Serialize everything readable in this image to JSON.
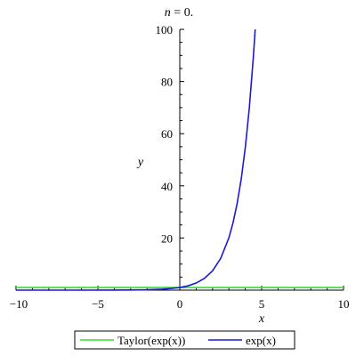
{
  "chart_data": {
    "type": "line",
    "title": "n = 0.",
    "xlabel": "x",
    "ylabel": "y",
    "xlim": [
      -10,
      10
    ],
    "ylim": [
      0,
      100
    ],
    "x_ticks": [
      -10,
      -5,
      0,
      5,
      10
    ],
    "x_tick_labels": [
      "−10",
      "−5",
      "0",
      "5",
      "10"
    ],
    "y_ticks": [
      20,
      40,
      60,
      80,
      100
    ],
    "y_tick_labels": [
      "20",
      "40",
      "60",
      "80",
      "100"
    ],
    "grid": false,
    "legend_position": "bottom",
    "series": [
      {
        "name": "Taylor(exp(x))",
        "color": "#33dd33",
        "x": [
          -10,
          10
        ],
        "y": [
          1,
          1
        ]
      },
      {
        "name": "exp(x)",
        "color": "#1a1ad6",
        "x": [
          -10,
          -8,
          -6,
          -4,
          -3,
          -2,
          -1,
          0,
          0.5,
          1,
          1.5,
          2,
          2.5,
          3,
          3.25,
          3.5,
          3.75,
          4,
          4.25,
          4.5,
          4.605
        ],
        "y": [
          4.54e-05,
          0.000335,
          0.00248,
          0.0183,
          0.0498,
          0.135,
          0.368,
          1,
          1.649,
          2.718,
          4.482,
          7.389,
          12.18,
          20.09,
          25.79,
          33.12,
          42.52,
          54.6,
          70.11,
          90.02,
          100
        ]
      }
    ]
  }
}
